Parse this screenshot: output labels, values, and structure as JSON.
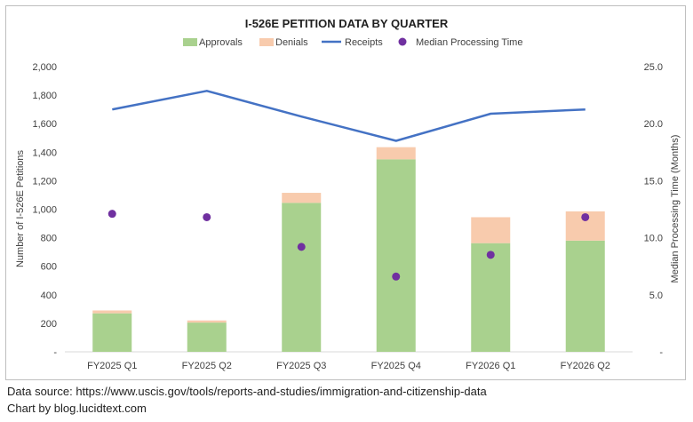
{
  "chart_data": {
    "type": "bar",
    "stacked": true,
    "title": "I-526E PETITION DATA BY QUARTER",
    "categories": [
      "FY2025 Q1",
      "FY2025 Q2",
      "FY2025 Q3",
      "FY2025 Q4",
      "FY2026 Q1",
      "FY2026 Q2"
    ],
    "series": [
      {
        "name": "Approvals",
        "kind": "bar",
        "axis": "left",
        "color": "#a9d18e",
        "values": [
          270,
          205,
          1045,
          1350,
          762,
          780
        ]
      },
      {
        "name": "Denials",
        "kind": "bar",
        "axis": "left",
        "color": "#f8cbad",
        "values": [
          20,
          15,
          70,
          85,
          182,
          205
        ]
      },
      {
        "name": "Receipts",
        "kind": "line",
        "axis": "left",
        "color": "#4472c4",
        "values": [
          1700,
          1830,
          1650,
          1480,
          1670,
          1700
        ]
      },
      {
        "name": "Median Processing Time",
        "kind": "scatter",
        "axis": "right",
        "color": "#7030a0",
        "values": [
          12.1,
          11.8,
          9.2,
          6.6,
          8.5,
          11.8
        ]
      }
    ],
    "ylabel": "Number of I-526E Petitions",
    "y2label": "Median Processing Time (Months)",
    "ylim": [
      0,
      2000
    ],
    "y2lim": [
      0,
      25
    ],
    "yticks": [
      "-",
      "200",
      "400",
      "600",
      "800",
      "1,000",
      "1,200",
      "1,400",
      "1,600",
      "1,800",
      "2,000"
    ],
    "y2ticks": [
      "-",
      "5.0",
      "10.0",
      "15.0",
      "20.0",
      "25.0"
    ],
    "legend": "top",
    "grid": false
  },
  "footer": {
    "source": "Data source: https://www.uscis.gov/tools/reports-and-studies/immigration-and-citizenship-data",
    "credit": "Chart by blog.lucidtext.com"
  }
}
